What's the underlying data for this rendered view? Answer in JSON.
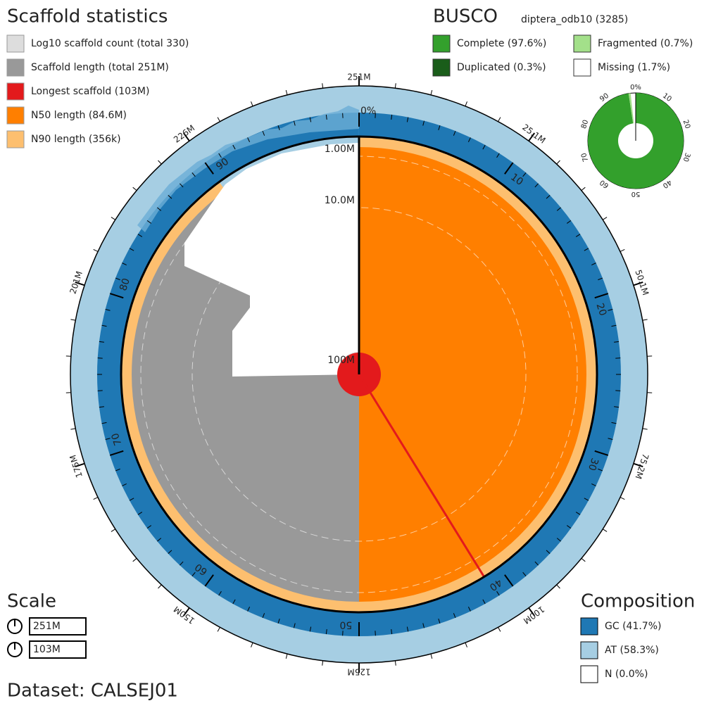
{
  "scaffold_statistics": {
    "title": "Scaffold statistics",
    "legend": [
      "Log10 scaffold count (total 330)",
      "Scaffold length (total 251M)",
      "Longest scaffold (103M)",
      "N50 length (84.6M)",
      "N90 length (356k)"
    ]
  },
  "busco": {
    "title": "BUSCO",
    "lineage": "diptera_odb10 (3285)",
    "legend": [
      "Complete (97.6%)",
      "Fragmented (0.7%)",
      "Duplicated (0.3%)",
      "Missing (1.7%)"
    ],
    "ticks": [
      "0%",
      "10",
      "20",
      "30",
      "40",
      "50",
      "60",
      "70",
      "80",
      "90"
    ]
  },
  "snail": {
    "zero_label": "0%",
    "percent_ticks": [
      "10",
      "20",
      "30",
      "40",
      "50",
      "60",
      "70",
      "80",
      "90"
    ],
    "length_ticks": [
      "251M",
      "25.1M",
      "50.1M",
      "75.2M",
      "100M",
      "125M",
      "150M",
      "175M",
      "201M",
      "226M"
    ],
    "radial_ticks": [
      "1.00M",
      "10.0M",
      "100M"
    ]
  },
  "scale": {
    "title": "Scale",
    "values": [
      "251M",
      "103M"
    ]
  },
  "composition": {
    "title": "Composition",
    "legend": [
      "GC (41.7%)",
      "AT (58.3%)",
      "N (0.0%)"
    ]
  },
  "dataset": "Dataset: CALSEJ01"
}
